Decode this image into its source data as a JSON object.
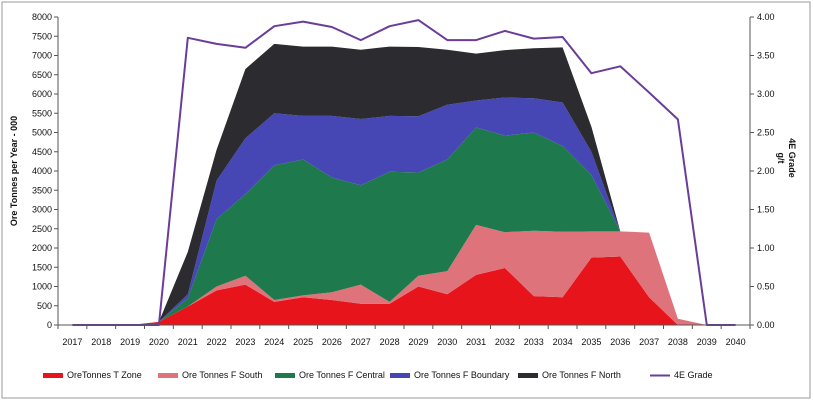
{
  "chart_data": {
    "type": "area",
    "stacked": true,
    "categories": [
      "2017",
      "2018",
      "2019",
      "2020",
      "2021",
      "2022",
      "2023",
      "2024",
      "2025",
      "2026",
      "2027",
      "2028",
      "2029",
      "2030",
      "2031",
      "2032",
      "2033",
      "2034",
      "2035",
      "2036",
      "2037",
      "2038",
      "2039",
      "2040"
    ],
    "ylabel": "Ore Tonnes per Year - 000",
    "y2label_line1": "4E  Grade",
    "y2label_line2": "g/t",
    "ylim": [
      0,
      8000
    ],
    "yticks": [
      "0",
      "500",
      "1000",
      "1500",
      "2000",
      "2500",
      "3000",
      "3500",
      "4000",
      "4500",
      "5000",
      "5500",
      "6000",
      "6500",
      "7000",
      "7500",
      "8000"
    ],
    "y2lim": [
      0,
      4
    ],
    "y2ticks": [
      "0.00",
      "0.50",
      "1.00",
      "1.50",
      "2.00",
      "2.50",
      "3.00",
      "3.50",
      "4.00"
    ],
    "grid": false,
    "legend_position": "bottom",
    "series": [
      {
        "name": "OreTonnes T Zone",
        "color": "#e8141b",
        "values": [
          0,
          0,
          0,
          80,
          480,
          900,
          1050,
          600,
          720,
          650,
          550,
          550,
          1000,
          800,
          1300,
          1480,
          750,
          720,
          1750,
          1780,
          720,
          0,
          0,
          0
        ]
      },
      {
        "name": "Ore Tonnes F South",
        "color": "#df737b",
        "values": [
          0,
          0,
          0,
          0,
          0,
          100,
          230,
          50,
          50,
          200,
          500,
          50,
          280,
          600,
          1300,
          930,
          1700,
          1700,
          680,
          650,
          1680,
          160,
          0,
          0
        ]
      },
      {
        "name": "Ore Tonnes F Central",
        "color": "#1e7a4d",
        "values": [
          0,
          0,
          0,
          0,
          220,
          1750,
          2120,
          3500,
          3530,
          2980,
          2580,
          3380,
          2680,
          2900,
          2530,
          2510,
          2550,
          2230,
          1470,
          0,
          0,
          0,
          0,
          0
        ]
      },
      {
        "name": "Ore Tonnes F Boundary",
        "color": "#4646b4",
        "values": [
          0,
          0,
          0,
          0,
          100,
          1000,
          1450,
          1350,
          1130,
          1600,
          1720,
          1450,
          1460,
          1420,
          700,
          990,
          890,
          1130,
          600,
          0,
          0,
          0,
          0,
          0
        ]
      },
      {
        "name": "Ore Tonnes F North",
        "color": "#2b2b30",
        "values": [
          0,
          0,
          0,
          0,
          1100,
          800,
          1800,
          1800,
          1800,
          1800,
          1800,
          1800,
          1800,
          1430,
          1220,
          1230,
          1300,
          1430,
          650,
          0,
          0,
          0,
          0,
          0
        ]
      }
    ],
    "line_series": {
      "name": "4E Grade",
      "color": "#6a3d9a",
      "axis": "right",
      "values": [
        0,
        0,
        0,
        0,
        3.73,
        3.65,
        3.6,
        3.88,
        3.94,
        3.87,
        3.7,
        3.88,
        3.96,
        3.7,
        3.7,
        3.82,
        3.72,
        3.74,
        3.27,
        3.36,
        3.02,
        2.67,
        0,
        0
      ]
    }
  }
}
